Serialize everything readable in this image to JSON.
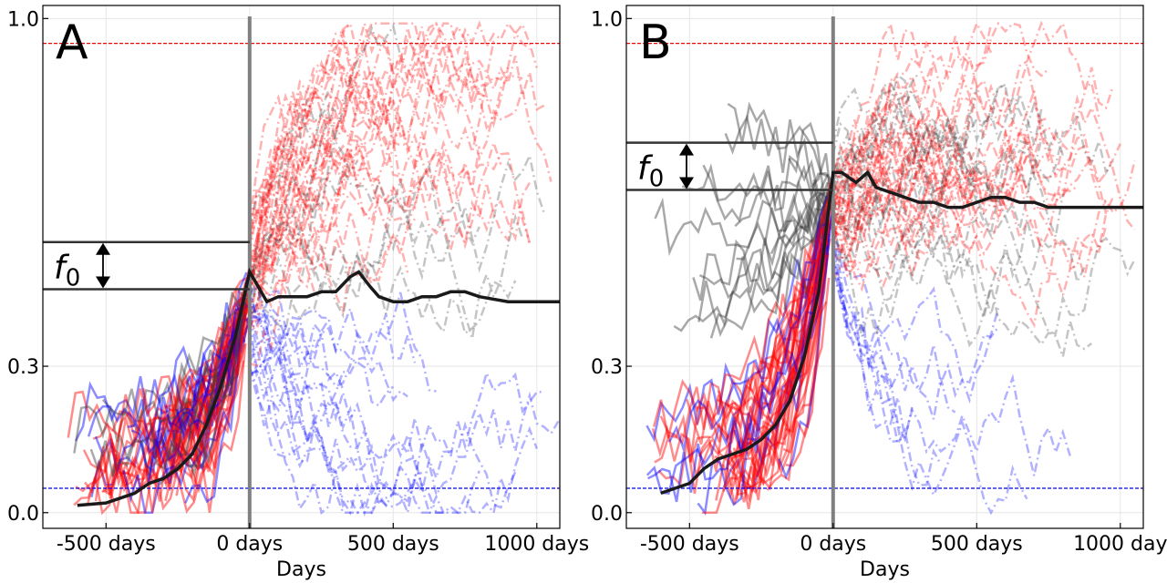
{
  "chart_data": [
    {
      "panel_label": "A",
      "type": "line",
      "xlabel": "Days",
      "ylabel": "",
      "x_ticks": [
        -500,
        0,
        500,
        1000
      ],
      "x_tick_labels": [
        "-500 days",
        "0 days",
        "500 days",
        "1000 days"
      ],
      "y_ticks": [
        0.0,
        0.3,
        1.0
      ],
      "y_tick_labels": [
        "0.0",
        "0.3",
        "1.0"
      ],
      "xlim": [
        -720,
        1080
      ],
      "ylim": [
        0.0,
        1.0
      ],
      "y_scale": "nonlinear (0.3 placed at ~0.30 of height)",
      "grid": true,
      "upper_threshold": {
        "value": 0.95,
        "color": "#ff0000",
        "style": "dashed"
      },
      "lower_threshold": {
        "value": 0.05,
        "color": "#0000ff",
        "style": "dashed"
      },
      "event_line": {
        "x": 0,
        "color": "#808080"
      },
      "f0": {
        "label": "f",
        "subscript": "0",
        "upper": 0.55,
        "lower": 0.455
      },
      "mean_series": {
        "name": "",
        "color": "#1a1a1a",
        "x": [
          -600,
          -500,
          -400,
          -350,
          -300,
          -250,
          -200,
          -150,
          -100,
          -50,
          0,
          30,
          60,
          100,
          150,
          200,
          250,
          300,
          350,
          380,
          420,
          450,
          500,
          550,
          600,
          650,
          700,
          750,
          800,
          900,
          1000,
          1080
        ],
        "y": [
          0.015,
          0.02,
          0.04,
          0.06,
          0.07,
          0.09,
          0.12,
          0.18,
          0.26,
          0.36,
          0.49,
          0.46,
          0.43,
          0.44,
          0.44,
          0.44,
          0.45,
          0.45,
          0.48,
          0.49,
          0.46,
          0.44,
          0.43,
          0.43,
          0.44,
          0.44,
          0.45,
          0.45,
          0.44,
          0.43,
          0.43,
          0.43
        ]
      },
      "trajectory_groups": {
        "pre_event": {
          "color_fixed_high": "#ff0000",
          "color_fixed_low": "#0000ff",
          "color_not_fixed": "#404040",
          "style": "solid"
        },
        "post_event": {
          "style": "dashdot"
        }
      }
    },
    {
      "panel_label": "B",
      "type": "line",
      "xlabel": "Days",
      "ylabel": "",
      "x_ticks": [
        -500,
        0,
        500,
        1000
      ],
      "x_tick_labels": [
        "-500 days",
        "0 days",
        "500 days",
        "1000 day"
      ],
      "y_ticks": [
        0.0,
        0.3,
        1.0
      ],
      "y_tick_labels": [
        "0.0",
        "0.3",
        "1.0"
      ],
      "xlim": [
        -720,
        1080
      ],
      "ylim": [
        0.0,
        1.0
      ],
      "grid": true,
      "upper_threshold": {
        "value": 0.95,
        "color": "#ff0000",
        "style": "dashed"
      },
      "lower_threshold": {
        "value": 0.05,
        "color": "#0000ff",
        "style": "dashed"
      },
      "event_line": {
        "x": 0,
        "color": "#808080"
      },
      "f0": {
        "label": "f",
        "subscript": "0",
        "upper": 0.75,
        "lower": 0.655
      },
      "mean_series": {
        "name": "",
        "color": "#1a1a1a",
        "x": [
          -600,
          -550,
          -500,
          -450,
          -400,
          -350,
          -300,
          -250,
          -200,
          -150,
          -100,
          -50,
          0,
          30,
          80,
          120,
          150,
          200,
          250,
          300,
          350,
          400,
          450,
          500,
          550,
          600,
          650,
          700,
          750,
          800,
          900,
          1000,
          1080
        ],
        "y": [
          0.04,
          0.05,
          0.06,
          0.09,
          0.11,
          0.12,
          0.13,
          0.15,
          0.18,
          0.23,
          0.32,
          0.45,
          0.69,
          0.69,
          0.67,
          0.69,
          0.66,
          0.65,
          0.64,
          0.63,
          0.63,
          0.62,
          0.62,
          0.63,
          0.64,
          0.64,
          0.63,
          0.63,
          0.62,
          0.62,
          0.62,
          0.62,
          0.62
        ]
      },
      "trajectory_groups": {
        "pre_event": {
          "color_fixed_high": "#ff0000",
          "color_fixed_low": "#0000ff",
          "color_not_fixed": "#404040",
          "style": "solid"
        },
        "post_event": {
          "style": "dashdot"
        }
      }
    }
  ]
}
